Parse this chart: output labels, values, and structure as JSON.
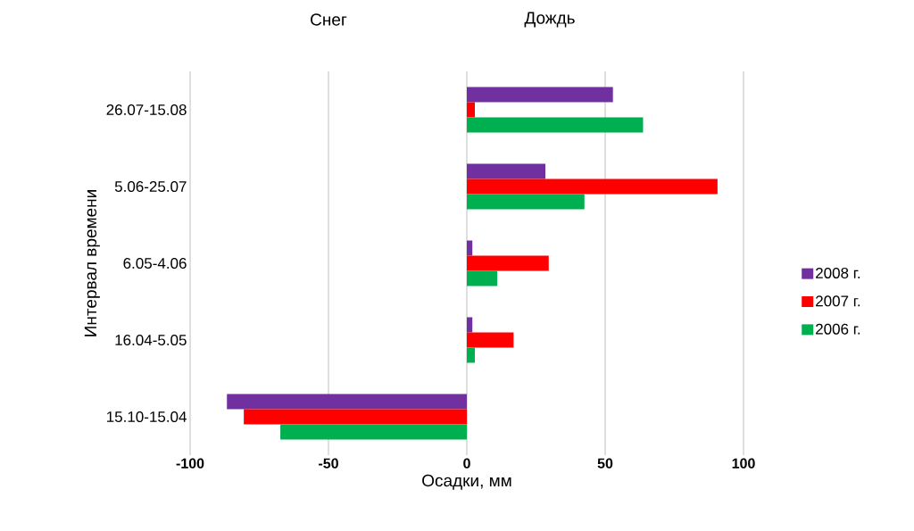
{
  "chart_data": {
    "type": "bar",
    "orientation": "horizontal",
    "categories": [
      "26.07-15.08",
      "5.06-25.07",
      "6.05-4.06",
      "16.04-5.05",
      "15.10-15.04"
    ],
    "series": [
      {
        "name": "2008 г.",
        "color": "#7030a0",
        "values": [
          52.8,
          28.4,
          2,
          2,
          -86.7
        ]
      },
      {
        "name": "2007 г.",
        "color": "#ff0000",
        "values": [
          2.9,
          90.6,
          29.6,
          16.9,
          -80.6
        ]
      },
      {
        "name": "2006 г.",
        "color": "#00b050",
        "values": [
          63.7,
          42.5,
          11,
          2.9,
          -67.4
        ]
      }
    ],
    "xlim": [
      -100,
      100
    ],
    "xticks": [
      -100,
      -50,
      0,
      50,
      100
    ],
    "xlabel": "Осадки, мм",
    "ylabel": "Интервал времени",
    "annotations": [
      "Снег",
      "Дождь"
    ],
    "grid": "x",
    "legend": "right"
  }
}
